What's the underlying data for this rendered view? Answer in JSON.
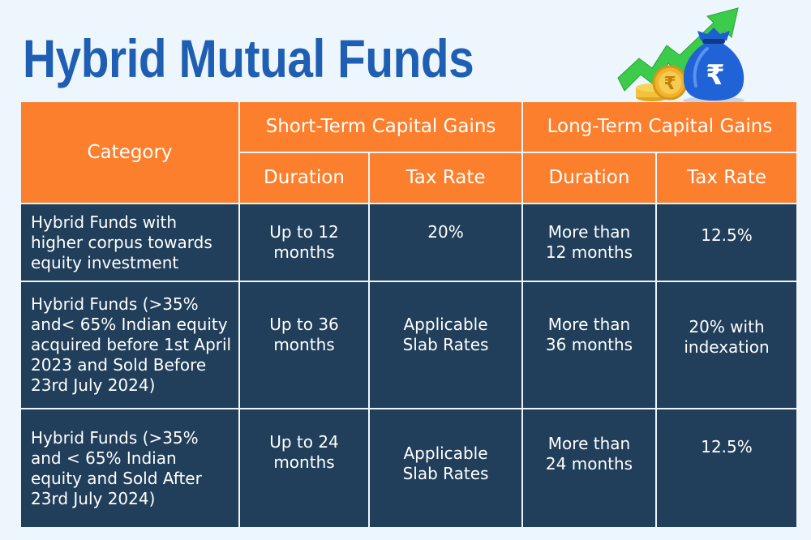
{
  "title": "Hybrid Mutual Funds",
  "logo": {
    "icon": "money-bag-rupee-growth-arrow-icon",
    "symbol": "₹"
  },
  "colors": {
    "background": "#eef6fd",
    "title": "#1f5fb3",
    "header": "#fb7f2c",
    "body": "#213f5a",
    "text": "#ffffff"
  },
  "table": {
    "header": {
      "category": "Category",
      "stcg": "Short-Term Capital Gains",
      "ltcg": "Long-Term Capital Gains",
      "stcg_duration": "Duration",
      "stcg_tax_rate": "Tax Rate",
      "ltcg_duration": "Duration",
      "ltcg_tax_rate": "Tax Rate"
    },
    "rows": [
      {
        "category": "Hybrid Funds with higher corpus towards equity investment",
        "stcg_duration": "Up to 12 months",
        "stcg_tax_rate": "20%",
        "ltcg_duration": "More than 12 months",
        "ltcg_tax_rate": "12.5%"
      },
      {
        "category": "Hybrid Funds (>35% and< 65% Indian equity acquired before 1st April 2023 and Sold Before 23rd July 2024)",
        "stcg_duration": "Up to 36 months",
        "stcg_tax_rate": "Applicable Slab Rates",
        "ltcg_duration": "More than 36 months",
        "ltcg_tax_rate": "20% with indexation"
      },
      {
        "category": "Hybrid Funds (>35% and < 65% Indian equity and Sold After 23rd July 2024)",
        "stcg_duration": "Up to 24 months",
        "stcg_tax_rate": "Applicable Slab Rates",
        "ltcg_duration": "More than 24 months",
        "ltcg_tax_rate": "12.5%"
      }
    ]
  }
}
